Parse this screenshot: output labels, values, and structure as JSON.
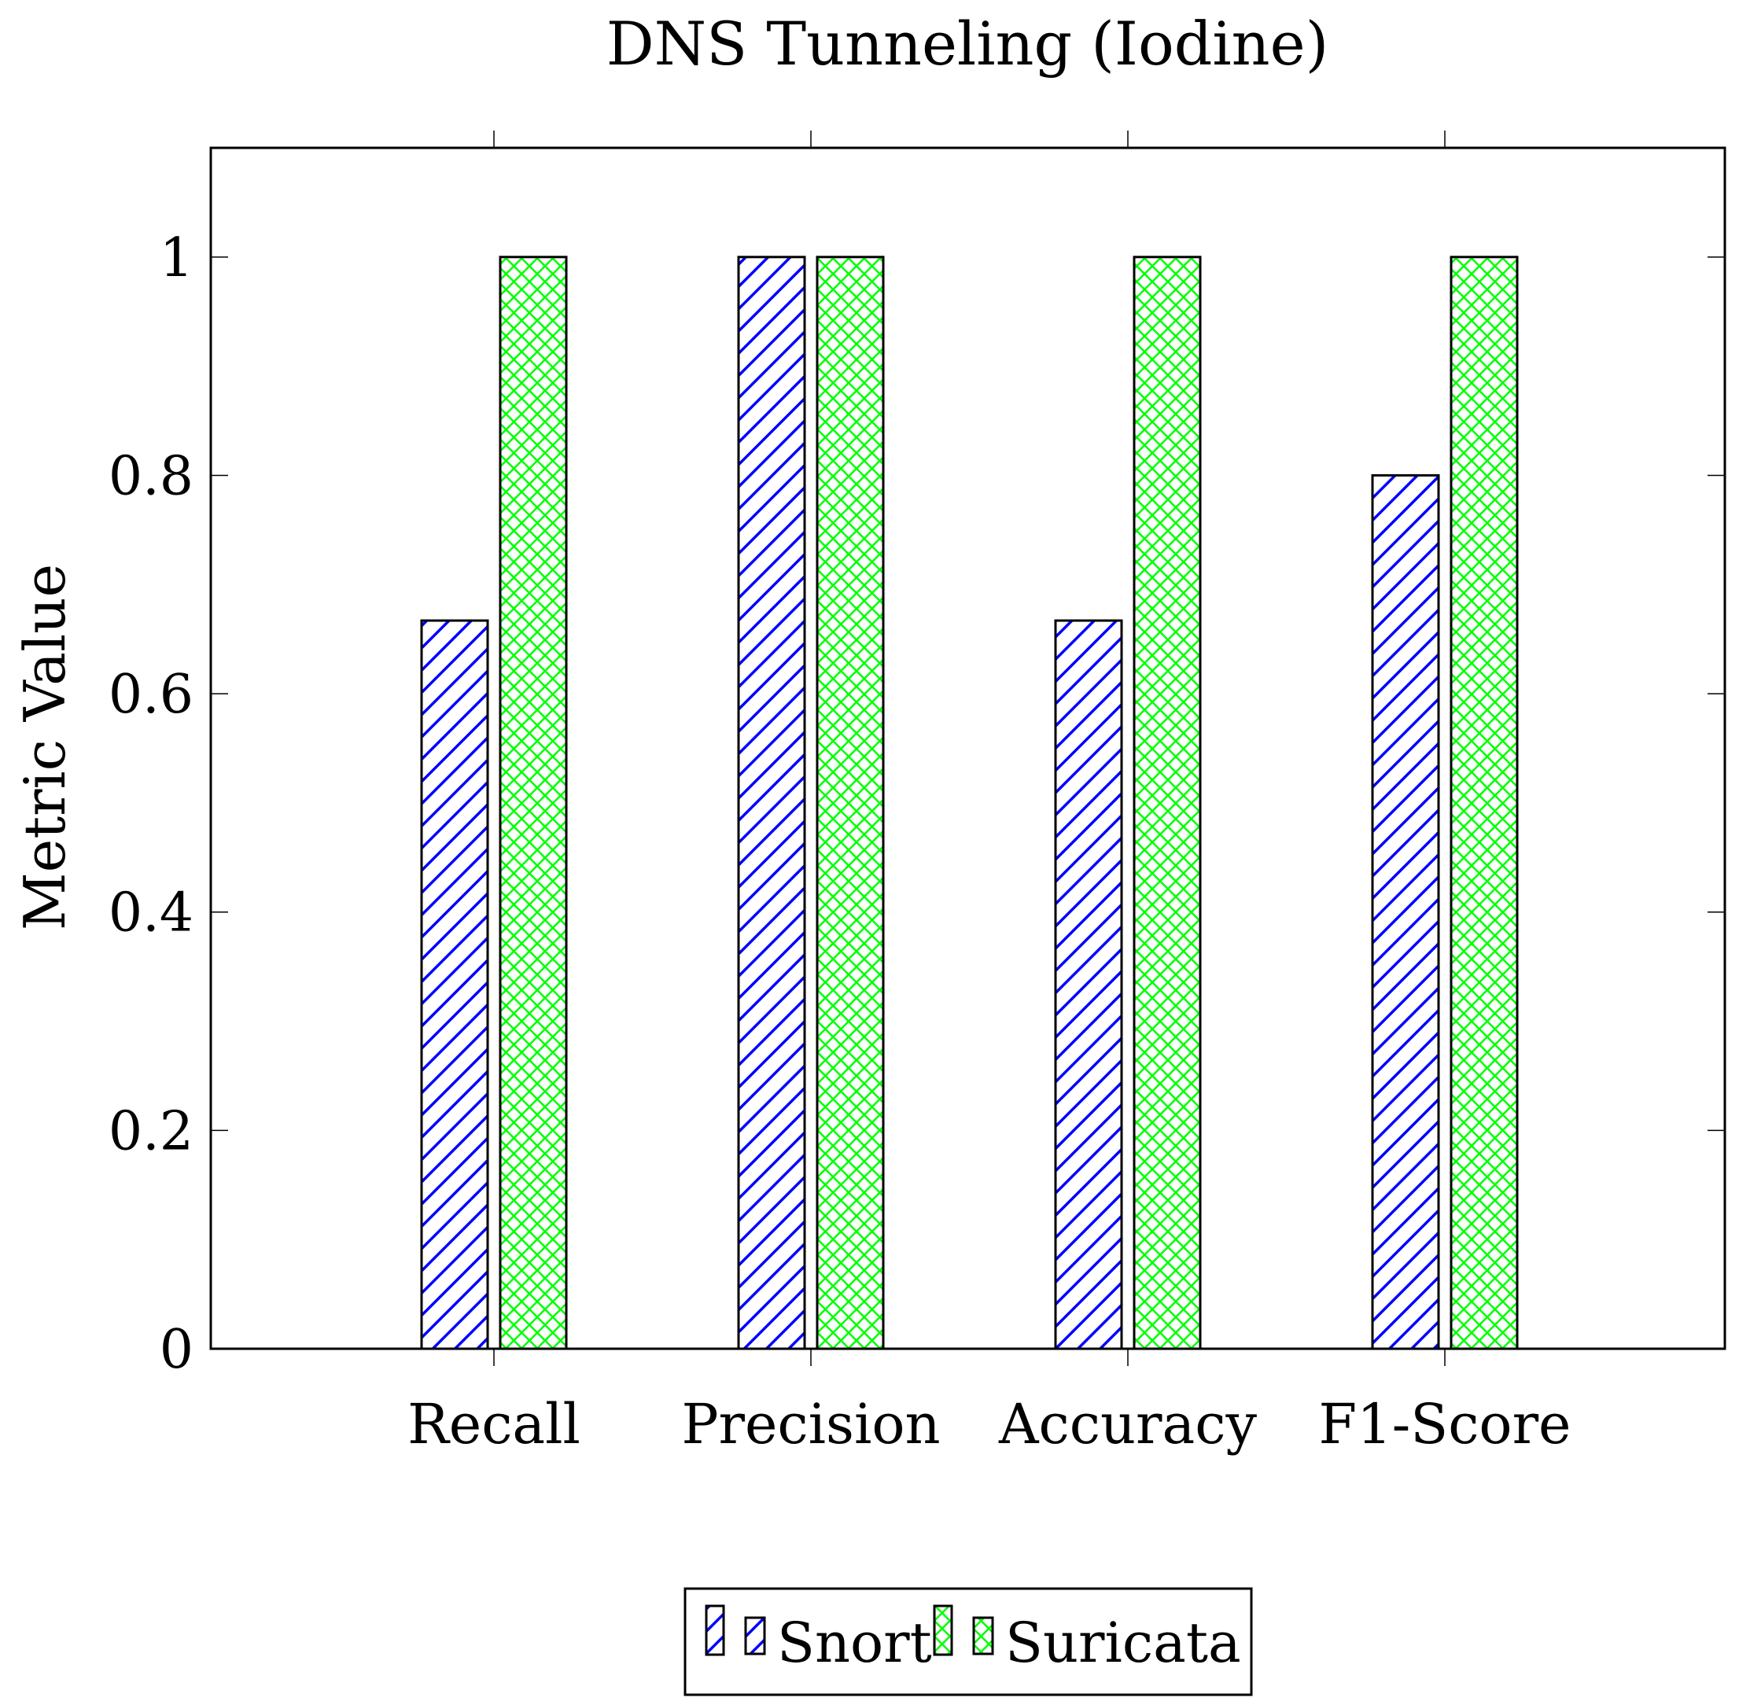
{
  "chart_data": {
    "type": "bar",
    "title": "DNS Tunneling (Iodine)",
    "xlabel": "",
    "ylabel": "Metric Value",
    "categories": [
      "Recall",
      "Precision",
      "Accuracy",
      "F1-Score"
    ],
    "series": [
      {
        "name": "Snort",
        "values": [
          0.667,
          1,
          0.667,
          0.8
        ],
        "color": "#0000ff",
        "pattern": "diagonal-lines"
      },
      {
        "name": "Suricata",
        "values": [
          1,
          1,
          1,
          1
        ],
        "color": "#00ff00",
        "pattern": "crosshatch"
      }
    ],
    "ylim": [
      0,
      1.1
    ],
    "yticks": [
      "0",
      "0.2",
      "0.4",
      "0.6",
      "0.8",
      "1"
    ],
    "grid": false,
    "legend_position": "bottom-center"
  }
}
